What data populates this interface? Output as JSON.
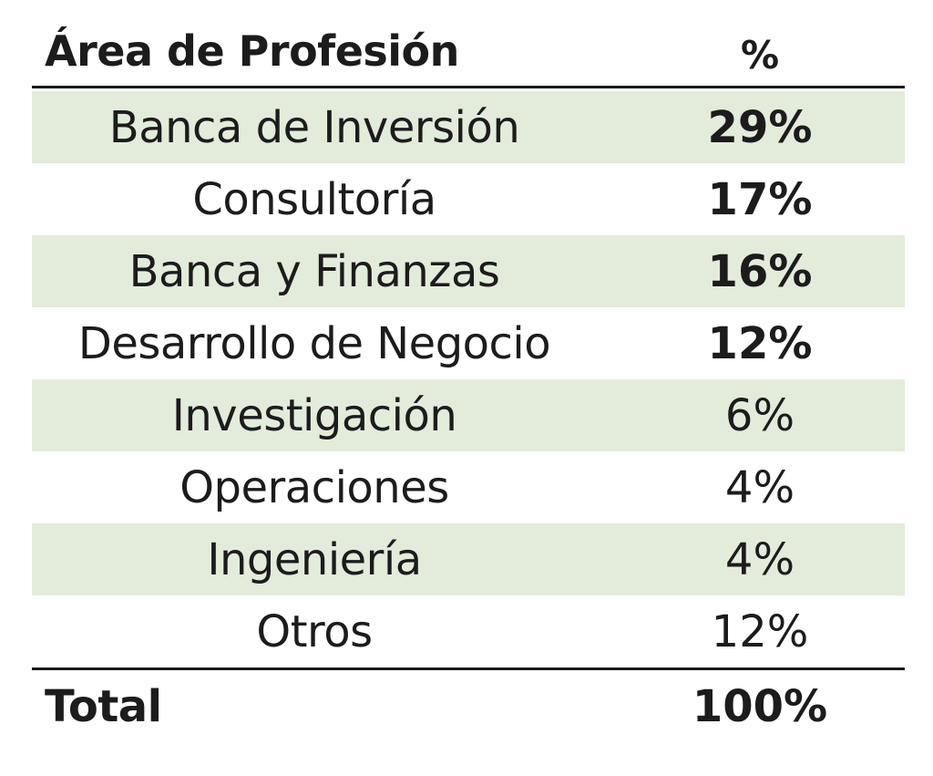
{
  "table": {
    "header": {
      "area": "Área de Profesión",
      "pct": "%"
    },
    "rows": [
      {
        "area": "Banca de Inversión",
        "pct": "29%",
        "bold_pct": true,
        "shaded": true
      },
      {
        "area": "Consultoría",
        "pct": "17%",
        "bold_pct": true,
        "shaded": false
      },
      {
        "area": "Banca y Finanzas",
        "pct": "16%",
        "bold_pct": true,
        "shaded": true
      },
      {
        "area": "Desarrollo de Negocio",
        "pct": "12%",
        "bold_pct": true,
        "shaded": false
      },
      {
        "area": "Investigación",
        "pct": "6%",
        "bold_pct": false,
        "shaded": true
      },
      {
        "area": "Operaciones",
        "pct": "4%",
        "bold_pct": false,
        "shaded": false
      },
      {
        "area": "Ingeniería",
        "pct": "4%",
        "bold_pct": false,
        "shaded": true
      },
      {
        "area": "Otros",
        "pct": "12%",
        "bold_pct": false,
        "shaded": false
      }
    ],
    "total": {
      "area": "Total",
      "pct": "100%"
    }
  },
  "colors": {
    "row_shade": "#e3ecdb",
    "rule": "#1a1a1a",
    "text": "#1c1c1c"
  }
}
